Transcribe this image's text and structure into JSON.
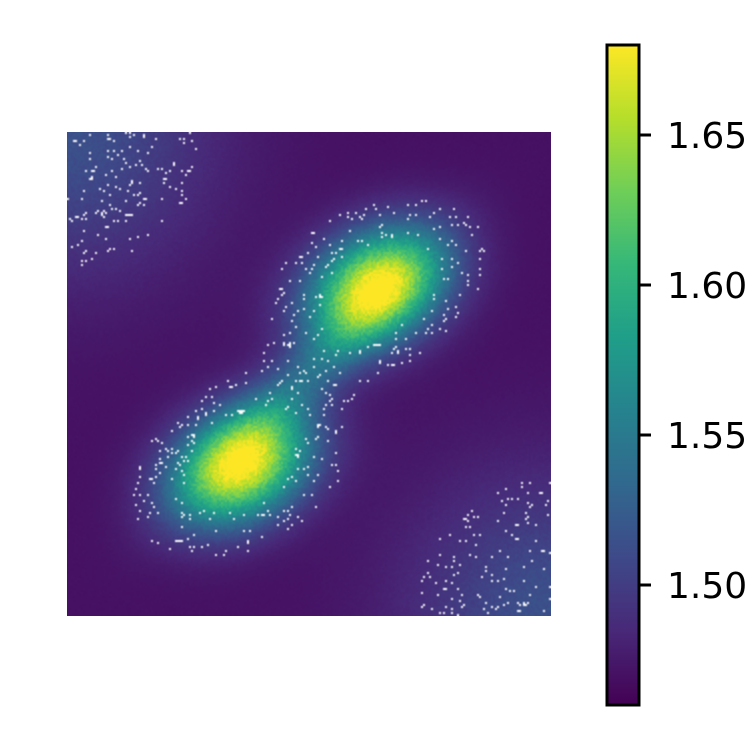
{
  "chart_data": {
    "type": "heatmap",
    "title": "",
    "xlabel": "",
    "ylabel": "",
    "axes_visible": false,
    "grid": false,
    "x_range": [
      0,
      1
    ],
    "y_range": [
      0,
      1
    ],
    "colormap": "viridis",
    "colormap_stops": [
      "#440154",
      "#482878",
      "#3e4989",
      "#31688e",
      "#26828e",
      "#1f9e89",
      "#35b779",
      "#6ece58",
      "#b5de2b",
      "#fde725"
    ],
    "background_color": "#ffffff",
    "colorbar": {
      "location": "right",
      "range": [
        1.46,
        1.68
      ],
      "ticks": [
        1.5,
        1.55,
        1.6,
        1.65
      ],
      "tick_labels": [
        "1.50",
        "1.55",
        "1.60",
        "1.65"
      ]
    },
    "field": {
      "description_components": "baseline with two gaussian peaks along the diagonal",
      "base": 1.47,
      "corner_level": 1.515,
      "peaks": [
        {
          "x": 0.64,
          "y": 0.68,
          "amplitude": 0.205,
          "sx": 0.105,
          "sy": 0.075,
          "angle_deg": 30
        },
        {
          "x": 0.36,
          "y": 0.31,
          "amplitude": 0.205,
          "sx": 0.105,
          "sy": 0.075,
          "angle_deg": 30
        }
      ]
    }
  }
}
